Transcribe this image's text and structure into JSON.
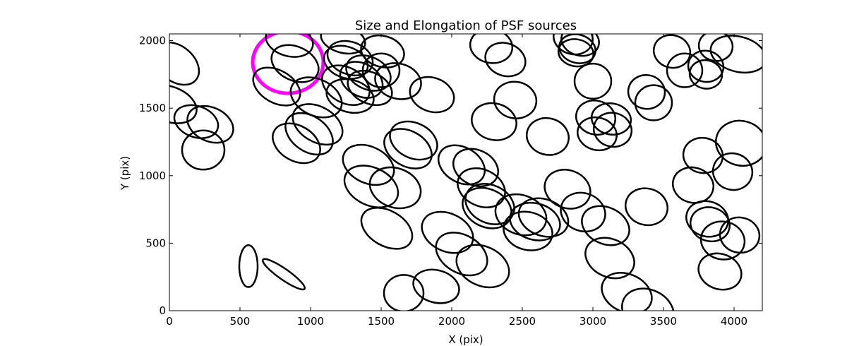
{
  "chart_data": {
    "type": "scatter",
    "title": "Size and Elongation of PSF sources",
    "xlabel": "X (pix)",
    "ylabel": "Y (pix)",
    "xlim": [
      0,
      4200
    ],
    "ylim": [
      0,
      2050
    ],
    "xticks": [
      0,
      500,
      1000,
      1500,
      2000,
      2500,
      3000,
      3500,
      4000
    ],
    "yticks": [
      0,
      500,
      1000,
      1500,
      2000
    ],
    "xtick_labels": [
      "0",
      "500",
      "1000",
      "1500",
      "2000",
      "2500",
      "3000",
      "3500",
      "4000"
    ],
    "ytick_labels": [
      "0",
      "500",
      "1000",
      "1500",
      "2000"
    ],
    "grid": false,
    "legend": "none",
    "ellipse_color": "#000000",
    "highlight_color": "#ff00ff",
    "ellipses": [
      {
        "x": 50,
        "y": 1830,
        "rx": 180,
        "ry": 130,
        "angle": -40
      },
      {
        "x": 0,
        "y": 1530,
        "rx": 200,
        "ry": 130,
        "angle": -20
      },
      {
        "x": 190,
        "y": 1400,
        "rx": 160,
        "ry": 115,
        "angle": -20
      },
      {
        "x": 290,
        "y": 1380,
        "rx": 170,
        "ry": 125,
        "angle": -25
      },
      {
        "x": 240,
        "y": 1190,
        "rx": 150,
        "ry": 145,
        "angle": 0
      },
      {
        "x": 840,
        "y": 1840,
        "rx": 250,
        "ry": 230,
        "angle": 0,
        "highlight": true
      },
      {
        "x": 850,
        "y": 2000,
        "rx": 170,
        "ry": 115,
        "angle": -15
      },
      {
        "x": 890,
        "y": 1830,
        "rx": 175,
        "ry": 125,
        "angle": -25
      },
      {
        "x": 760,
        "y": 1660,
        "rx": 180,
        "ry": 120,
        "angle": -30
      },
      {
        "x": 1040,
        "y": 1580,
        "rx": 190,
        "ry": 135,
        "angle": -25
      },
      {
        "x": 1050,
        "y": 1380,
        "rx": 190,
        "ry": 130,
        "angle": -30
      },
      {
        "x": 990,
        "y": 1310,
        "rx": 185,
        "ry": 130,
        "angle": -35
      },
      {
        "x": 900,
        "y": 1240,
        "rx": 180,
        "ry": 130,
        "angle": -30
      },
      {
        "x": 1230,
        "y": 2010,
        "rx": 160,
        "ry": 100,
        "angle": -15
      },
      {
        "x": 1280,
        "y": 1870,
        "rx": 165,
        "ry": 120,
        "angle": -20
      },
      {
        "x": 1250,
        "y": 1840,
        "rx": 160,
        "ry": 115,
        "angle": -20
      },
      {
        "x": 1280,
        "y": 1590,
        "rx": 170,
        "ry": 120,
        "angle": -15
      },
      {
        "x": 1250,
        "y": 1670,
        "rx": 180,
        "ry": 130,
        "angle": -30
      },
      {
        "x": 1410,
        "y": 1760,
        "rx": 165,
        "ry": 120,
        "angle": -25
      },
      {
        "x": 1360,
        "y": 1710,
        "rx": 160,
        "ry": 120,
        "angle": -30
      },
      {
        "x": 1420,
        "y": 1650,
        "rx": 165,
        "ry": 115,
        "angle": -25
      },
      {
        "x": 1510,
        "y": 1920,
        "rx": 155,
        "ry": 115,
        "angle": -15
      },
      {
        "x": 1500,
        "y": 1780,
        "rx": 130,
        "ry": 125,
        "angle": 0
      },
      {
        "x": 1620,
        "y": 1700,
        "rx": 165,
        "ry": 130,
        "angle": -15
      },
      {
        "x": 1860,
        "y": 1600,
        "rx": 160,
        "ry": 125,
        "angle": -20
      },
      {
        "x": 1730,
        "y": 1260,
        "rx": 175,
        "ry": 130,
        "angle": -25
      },
      {
        "x": 1690,
        "y": 1200,
        "rx": 180,
        "ry": 130,
        "angle": -30
      },
      {
        "x": 1410,
        "y": 1080,
        "rx": 190,
        "ry": 135,
        "angle": -25
      },
      {
        "x": 1430,
        "y": 920,
        "rx": 200,
        "ry": 140,
        "angle": -25
      },
      {
        "x": 1600,
        "y": 910,
        "rx": 185,
        "ry": 145,
        "angle": -20
      },
      {
        "x": 1540,
        "y": 610,
        "rx": 195,
        "ry": 130,
        "angle": -30
      },
      {
        "x": 1660,
        "y": 130,
        "rx": 140,
        "ry": 135,
        "angle": 0
      },
      {
        "x": 1890,
        "y": 180,
        "rx": 165,
        "ry": 120,
        "angle": -15
      },
      {
        "x": 1970,
        "y": 580,
        "rx": 190,
        "ry": 140,
        "angle": -25
      },
      {
        "x": 2070,
        "y": 420,
        "rx": 195,
        "ry": 140,
        "angle": -30
      },
      {
        "x": 2220,
        "y": 330,
        "rx": 195,
        "ry": 145,
        "angle": -25
      },
      {
        "x": 2070,
        "y": 1080,
        "rx": 175,
        "ry": 130,
        "angle": -30
      },
      {
        "x": 2170,
        "y": 1060,
        "rx": 165,
        "ry": 130,
        "angle": -25
      },
      {
        "x": 2210,
        "y": 910,
        "rx": 175,
        "ry": 135,
        "angle": -25
      },
      {
        "x": 2270,
        "y": 790,
        "rx": 180,
        "ry": 140,
        "angle": -25
      },
      {
        "x": 2250,
        "y": 760,
        "rx": 180,
        "ry": 140,
        "angle": -25
      },
      {
        "x": 2300,
        "y": 1400,
        "rx": 160,
        "ry": 135,
        "angle": -15
      },
      {
        "x": 2450,
        "y": 1560,
        "rx": 150,
        "ry": 135,
        "angle": -10
      },
      {
        "x": 2280,
        "y": 1960,
        "rx": 150,
        "ry": 125,
        "angle": -10
      },
      {
        "x": 2380,
        "y": 1860,
        "rx": 145,
        "ry": 120,
        "angle": -20
      },
      {
        "x": 2680,
        "y": 1290,
        "rx": 150,
        "ry": 135,
        "angle": -15
      },
      {
        "x": 2490,
        "y": 710,
        "rx": 185,
        "ry": 145,
        "angle": -20
      },
      {
        "x": 2540,
        "y": 590,
        "rx": 175,
        "ry": 140,
        "angle": -15
      },
      {
        "x": 2590,
        "y": 660,
        "rx": 180,
        "ry": 135,
        "angle": -15
      },
      {
        "x": 2650,
        "y": 690,
        "rx": 180,
        "ry": 135,
        "angle": -20
      },
      {
        "x": 2820,
        "y": 900,
        "rx": 165,
        "ry": 140,
        "angle": -20
      },
      {
        "x": 2930,
        "y": 730,
        "rx": 160,
        "ry": 140,
        "angle": -20
      },
      {
        "x": 3090,
        "y": 630,
        "rx": 175,
        "ry": 135,
        "angle": -25
      },
      {
        "x": 3120,
        "y": 390,
        "rx": 180,
        "ry": 140,
        "angle": -25
      },
      {
        "x": 3240,
        "y": 130,
        "rx": 185,
        "ry": 140,
        "angle": -25
      },
      {
        "x": 3390,
        "y": 0,
        "rx": 190,
        "ry": 155,
        "angle": -25
      },
      {
        "x": 3380,
        "y": 770,
        "rx": 150,
        "ry": 135,
        "angle": -15
      },
      {
        "x": 2860,
        "y": 2020,
        "rx": 140,
        "ry": 120,
        "angle": -15
      },
      {
        "x": 2910,
        "y": 2000,
        "rx": 135,
        "ry": 110,
        "angle": -15
      },
      {
        "x": 2890,
        "y": 1940,
        "rx": 130,
        "ry": 105,
        "angle": -15
      },
      {
        "x": 2880,
        "y": 1910,
        "rx": 125,
        "ry": 100,
        "angle": -10
      },
      {
        "x": 3000,
        "y": 1700,
        "rx": 130,
        "ry": 130,
        "angle": 0
      },
      {
        "x": 3020,
        "y": 1430,
        "rx": 140,
        "ry": 125,
        "angle": -15
      },
      {
        "x": 3130,
        "y": 1420,
        "rx": 140,
        "ry": 115,
        "angle": -10
      },
      {
        "x": 3140,
        "y": 1340,
        "rx": 135,
        "ry": 125,
        "angle": -15
      },
      {
        "x": 3030,
        "y": 1310,
        "rx": 140,
        "ry": 120,
        "angle": -15
      },
      {
        "x": 3380,
        "y": 1620,
        "rx": 130,
        "ry": 125,
        "angle": -10
      },
      {
        "x": 3430,
        "y": 1540,
        "rx": 130,
        "ry": 130,
        "angle": 0
      },
      {
        "x": 3560,
        "y": 1920,
        "rx": 130,
        "ry": 120,
        "angle": -15
      },
      {
        "x": 3650,
        "y": 1780,
        "rx": 125,
        "ry": 125,
        "angle": 0
      },
      {
        "x": 3800,
        "y": 1810,
        "rx": 125,
        "ry": 115,
        "angle": -10
      },
      {
        "x": 3800,
        "y": 1750,
        "rx": 115,
        "ry": 105,
        "angle": -10
      },
      {
        "x": 3870,
        "y": 1960,
        "rx": 120,
        "ry": 110,
        "angle": -10
      },
      {
        "x": 4030,
        "y": 1900,
        "rx": 200,
        "ry": 130,
        "angle": -15
      },
      {
        "x": 4050,
        "y": 1240,
        "rx": 180,
        "ry": 165,
        "angle": -15
      },
      {
        "x": 3990,
        "y": 1030,
        "rx": 140,
        "ry": 135,
        "angle": -15
      },
      {
        "x": 3780,
        "y": 1150,
        "rx": 140,
        "ry": 130,
        "angle": -10
      },
      {
        "x": 3710,
        "y": 930,
        "rx": 145,
        "ry": 130,
        "angle": -15
      },
      {
        "x": 3810,
        "y": 680,
        "rx": 150,
        "ry": 130,
        "angle": -15
      },
      {
        "x": 3830,
        "y": 640,
        "rx": 140,
        "ry": 125,
        "angle": -15
      },
      {
        "x": 3920,
        "y": 520,
        "rx": 155,
        "ry": 140,
        "angle": -10
      },
      {
        "x": 4040,
        "y": 560,
        "rx": 140,
        "ry": 130,
        "angle": -10
      },
      {
        "x": 3900,
        "y": 290,
        "rx": 155,
        "ry": 130,
        "angle": -20
      },
      {
        "x": 560,
        "y": 330,
        "rx": 65,
        "ry": 155,
        "angle": 0
      },
      {
        "x": 810,
        "y": 270,
        "rx": 180,
        "ry": 40,
        "angle": -35
      }
    ]
  }
}
